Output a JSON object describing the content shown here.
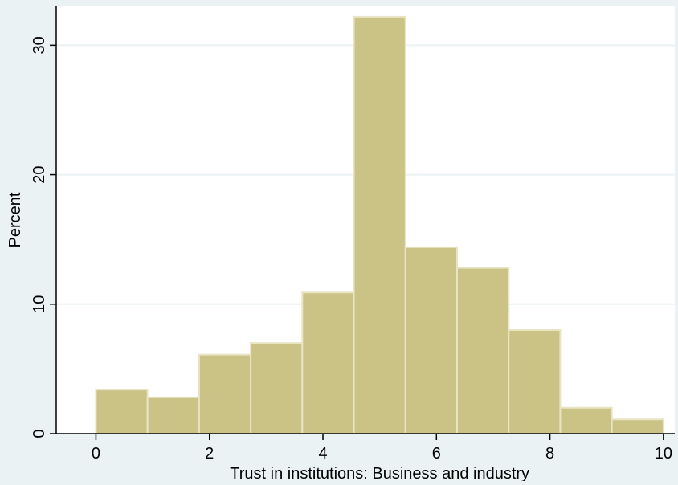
{
  "chart_data": {
    "type": "bar",
    "subtype": "histogram",
    "xlabel": "Trust in institutions: Business and industry",
    "ylabel": "Percent",
    "xlim": [
      -0.7,
      10.2
    ],
    "ylim": [
      0,
      33
    ],
    "x_ticks": [
      0,
      2,
      4,
      6,
      8,
      10
    ],
    "y_ticks": [
      0,
      10,
      20,
      30
    ],
    "grid": true,
    "bins": [
      {
        "start": 0.0,
        "end": 0.9091,
        "value": 3.4
      },
      {
        "start": 0.9091,
        "end": 1.8182,
        "value": 2.8
      },
      {
        "start": 1.8182,
        "end": 2.7273,
        "value": 6.1
      },
      {
        "start": 2.7273,
        "end": 3.6364,
        "value": 7.0
      },
      {
        "start": 3.6364,
        "end": 4.5455,
        "value": 10.9
      },
      {
        "start": 4.5455,
        "end": 5.4545,
        "value": 32.2
      },
      {
        "start": 5.4545,
        "end": 6.3636,
        "value": 14.4
      },
      {
        "start": 6.3636,
        "end": 7.2727,
        "value": 12.8
      },
      {
        "start": 7.2727,
        "end": 8.1818,
        "value": 8.0
      },
      {
        "start": 8.1818,
        "end": 9.0909,
        "value": 2.0
      },
      {
        "start": 9.0909,
        "end": 10.0,
        "value": 1.1
      }
    ],
    "colors": {
      "bar_fill": "#cbc385",
      "bar_stroke": "#e9e4c4",
      "plot_background": "#ffffff",
      "page_background": "#eaf2f3",
      "grid": "#eaf2f3",
      "axis": "#000000"
    }
  }
}
